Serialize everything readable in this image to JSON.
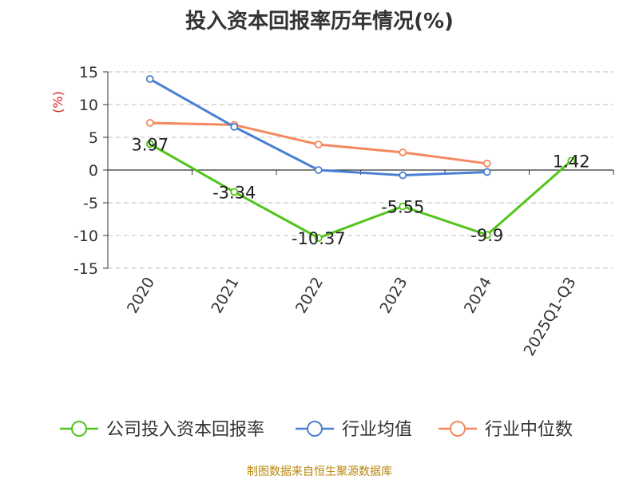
{
  "chart_data": {
    "type": "line",
    "title": "投入资本回报率历年情况(%)",
    "ylabel": "(%)",
    "categories": [
      "2020",
      "2021",
      "2022",
      "2023",
      "2024",
      "2025Q1-Q3"
    ],
    "ylim": [
      -15,
      15
    ],
    "yticks": [
      15,
      10,
      5,
      0,
      -5,
      -10,
      -15
    ],
    "ytick_labels": [
      "15",
      "10",
      "5",
      "0",
      "-5",
      "-10",
      "-15"
    ],
    "grid": true,
    "legend_position": "bottom",
    "series": [
      {
        "name": "公司投入资本回报率",
        "color": "#52c41a",
        "values": [
          3.97,
          -3.34,
          -10.37,
          -5.55,
          -9.9,
          1.42
        ],
        "data_labels": [
          "3.97",
          "-3.34",
          "-10.37",
          "-5.55",
          "-9.9",
          "1.42"
        ]
      },
      {
        "name": "行业均值",
        "color": "#4a7fd4",
        "values": [
          13.9,
          6.6,
          0.0,
          -0.8,
          -0.3,
          null
        ]
      },
      {
        "name": "行业中位数",
        "color": "#f4895f",
        "values": [
          7.2,
          6.9,
          3.9,
          2.7,
          1.0,
          null
        ]
      }
    ]
  },
  "source_note": "制图数据来自恒生聚源数据库"
}
